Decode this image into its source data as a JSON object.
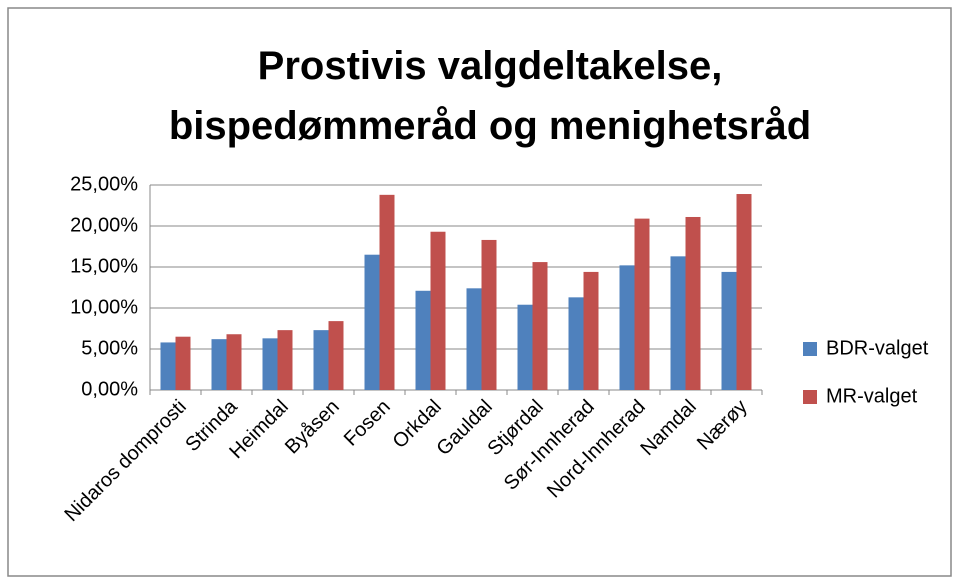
{
  "chart_data": {
    "type": "bar",
    "title": "Prostivis valgdeltakelse, bispedømmeråd og menighetsråd",
    "categories": [
      "Nidaros domprosti",
      "Strinda",
      "Heimdal",
      "Byåsen",
      "Fosen",
      "Orkdal",
      "Gauldal",
      "Stjørdal",
      "Sør-Innherad",
      "Nord-Innherad",
      "Namdal",
      "Nærøy"
    ],
    "series": [
      {
        "name": "BDR-valget",
        "color": "#4f81bd",
        "values": [
          5.8,
          6.2,
          6.3,
          7.3,
          16.5,
          12.1,
          12.4,
          10.4,
          11.3,
          15.2,
          16.3,
          14.4
        ]
      },
      {
        "name": "MR-valget",
        "color": "#c0504d",
        "values": [
          6.5,
          6.8,
          7.3,
          8.4,
          23.8,
          19.3,
          18.3,
          15.6,
          14.4,
          20.9,
          21.1,
          23.9
        ]
      }
    ],
    "ylim": [
      0,
      25
    ],
    "yticks": [
      {
        "value": 0,
        "label": "0,00%"
      },
      {
        "value": 5,
        "label": "5,00%"
      },
      {
        "value": 10,
        "label": "10,00%"
      },
      {
        "value": 15,
        "label": "15,00%"
      },
      {
        "value": 20,
        "label": "20,00%"
      },
      {
        "value": 25,
        "label": "25,00%"
      }
    ],
    "grid": true,
    "legend": "right"
  }
}
